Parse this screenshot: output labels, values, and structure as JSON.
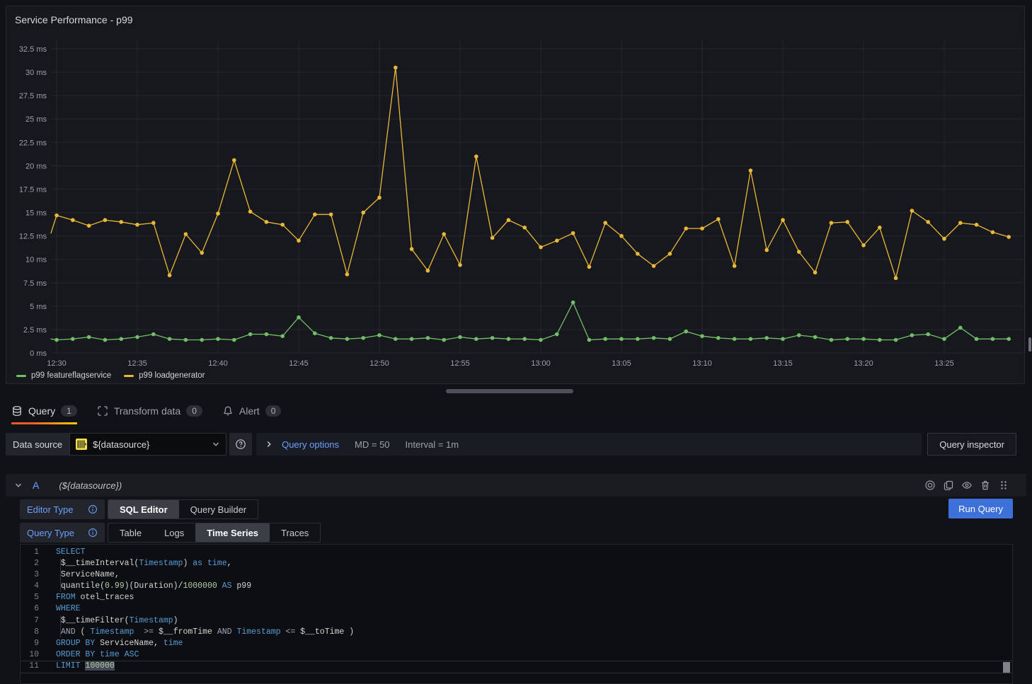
{
  "panel": {
    "title": "Service Performance - p99"
  },
  "chart_data": {
    "type": "line",
    "title": "Service Performance - p99",
    "x_start": "12:30",
    "x_step_minutes": 1,
    "x_tick_labels": [
      "12:30",
      "12:35",
      "12:40",
      "12:45",
      "12:50",
      "12:55",
      "13:00",
      "13:05",
      "13:10",
      "13:15",
      "13:20",
      "13:25"
    ],
    "y_tick_values": [
      0,
      2.5,
      5,
      7.5,
      10,
      12.5,
      15,
      17.5,
      20,
      22.5,
      25,
      27.5,
      30,
      32.5
    ],
    "y_tick_labels": [
      "0 ms",
      "2.5 ms",
      "5 ms",
      "7.5 ms",
      "10 ms",
      "12.5 ms",
      "15 ms",
      "17.5 ms",
      "20 ms",
      "22.5 ms",
      "25 ms",
      "27.5 ms",
      "30 ms",
      "32.5 ms"
    ],
    "ylim": [
      0,
      34.5
    ],
    "unit": "ms",
    "grid": true,
    "legend_position": "bottom-left",
    "series": [
      {
        "name": "p99 featureflagservice",
        "color": "#73BF69",
        "edge_start": 1.5,
        "values": [
          1.4,
          1.5,
          1.7,
          1.4,
          1.5,
          1.7,
          2.0,
          1.5,
          1.4,
          1.4,
          1.5,
          1.4,
          2.0,
          2.0,
          1.8,
          3.8,
          2.1,
          1.6,
          1.5,
          1.6,
          1.9,
          1.5,
          1.5,
          1.6,
          1.4,
          1.7,
          1.5,
          1.6,
          1.5,
          1.5,
          1.4,
          2.0,
          5.4,
          1.4,
          1.5,
          1.5,
          1.5,
          1.6,
          1.5,
          2.3,
          1.8,
          1.6,
          1.5,
          1.5,
          1.6,
          1.5,
          1.9,
          1.7,
          1.4,
          1.5,
          1.5,
          1.4,
          1.4,
          1.9,
          2.0,
          1.5,
          2.7,
          1.5,
          1.5,
          1.5
        ]
      },
      {
        "name": "p99 loadgenerator",
        "color": "#EAB839",
        "edge_start": 12.8,
        "values": [
          14.7,
          14.2,
          13.6,
          14.2,
          14.0,
          13.7,
          13.9,
          8.3,
          12.7,
          10.7,
          14.9,
          20.6,
          15.1,
          14.0,
          13.7,
          12.0,
          14.8,
          14.8,
          8.4,
          15.0,
          16.6,
          30.5,
          11.1,
          8.8,
          12.7,
          9.4,
          21.0,
          12.3,
          14.2,
          13.4,
          11.3,
          12.0,
          12.8,
          9.2,
          13.9,
          12.5,
          10.6,
          9.3,
          10.6,
          13.3,
          13.3,
          14.3,
          9.3,
          19.5,
          11.0,
          14.2,
          10.8,
          8.6,
          13.9,
          14.0,
          11.5,
          13.4,
          8.0,
          15.2,
          14.0,
          12.2,
          13.9,
          13.7,
          12.9,
          12.4
        ]
      }
    ]
  },
  "tabs": [
    {
      "label": "Query",
      "count": "1",
      "icon": "database-icon",
      "active": true
    },
    {
      "label": "Transform data",
      "count": "0",
      "icon": "transform-icon",
      "active": false
    },
    {
      "label": "Alert",
      "count": "0",
      "icon": "bell-icon",
      "active": false
    }
  ],
  "toolbar": {
    "datasource_label": "Data source",
    "datasource_value": "${datasource}",
    "query_options_label": "Query options",
    "max_data_points": "MD = 50",
    "interval": "Interval = 1m",
    "query_inspector_label": "Query inspector"
  },
  "query_row": {
    "letter": "A",
    "datasource_ref": "(${datasource})"
  },
  "editor": {
    "editor_type_label": "Editor Type",
    "editor_type_options": [
      "SQL Editor",
      "Query Builder"
    ],
    "editor_type_selected": "SQL Editor",
    "query_type_label": "Query Type",
    "query_type_options": [
      "Table",
      "Logs",
      "Time Series",
      "Traces"
    ],
    "query_type_selected": "Time Series",
    "run_query_label": "Run Query"
  },
  "colors": {
    "accent_blue": "#6e9fff",
    "run_button": "#3d71d9",
    "tab_underline_from": "#f05a28",
    "tab_underline_to": "#fbca0a",
    "series_green": "#73BF69",
    "series_yellow": "#EAB839"
  },
  "syntax": {
    "k": "#569cd6",
    "d": "#d4d4d4",
    "n": "#b5cea8",
    "o": "#9da5b4",
    "sel_bg": "#414754"
  },
  "sql": {
    "active_line": 11,
    "lines": [
      {
        "g": false,
        "t": [
          [
            "SELECT",
            "k"
          ]
        ]
      },
      {
        "g": true,
        "t": [
          [
            " $__timeInterval(",
            "d"
          ],
          [
            "Timestamp",
            "k"
          ],
          [
            ") ",
            "d"
          ],
          [
            "as",
            "k"
          ],
          [
            " ",
            "d"
          ],
          [
            "time",
            "k"
          ],
          [
            ",",
            "d"
          ]
        ]
      },
      {
        "g": true,
        "t": [
          [
            " ServiceName,",
            "d"
          ]
        ]
      },
      {
        "g": true,
        "t": [
          [
            " quantile(",
            "d"
          ],
          [
            "0.99",
            "n"
          ],
          [
            ")(Duration)/",
            "d"
          ],
          [
            "1000000",
            "n"
          ],
          [
            " ",
            "d"
          ],
          [
            "AS",
            "k"
          ],
          [
            " p99",
            "d"
          ]
        ]
      },
      {
        "g": false,
        "t": [
          [
            "FROM",
            "k"
          ],
          [
            " otel_traces",
            "d"
          ]
        ]
      },
      {
        "g": false,
        "t": [
          [
            "WHERE",
            "k"
          ]
        ]
      },
      {
        "g": true,
        "t": [
          [
            " $__timeFilter(",
            "d"
          ],
          [
            "Timestamp",
            "k"
          ],
          [
            ")",
            "d"
          ]
        ]
      },
      {
        "g": true,
        "t": [
          [
            " ",
            "d"
          ],
          [
            "AND",
            "o"
          ],
          [
            " ( ",
            "d"
          ],
          [
            "Timestamp",
            "k"
          ],
          [
            "  ",
            "d"
          ],
          [
            ">=",
            "o"
          ],
          [
            " $__fromTime ",
            "d"
          ],
          [
            "AND",
            "o"
          ],
          [
            " ",
            "d"
          ],
          [
            "Timestamp",
            "k"
          ],
          [
            " ",
            "d"
          ],
          [
            "<=",
            "o"
          ],
          [
            " $__toTime )",
            "d"
          ]
        ]
      },
      {
        "g": false,
        "t": [
          [
            "GROUP BY",
            "k"
          ],
          [
            " ServiceName, ",
            "d"
          ],
          [
            "time",
            "k"
          ]
        ]
      },
      {
        "g": false,
        "t": [
          [
            "ORDER BY",
            "k"
          ],
          [
            " ",
            "d"
          ],
          [
            "time",
            "k"
          ],
          [
            " ",
            "d"
          ],
          [
            "ASC",
            "k"
          ]
        ]
      },
      {
        "g": false,
        "t": [
          [
            "LIMIT",
            "k"
          ],
          [
            " ",
            "d"
          ],
          [
            "100000",
            "sel"
          ]
        ]
      }
    ]
  }
}
